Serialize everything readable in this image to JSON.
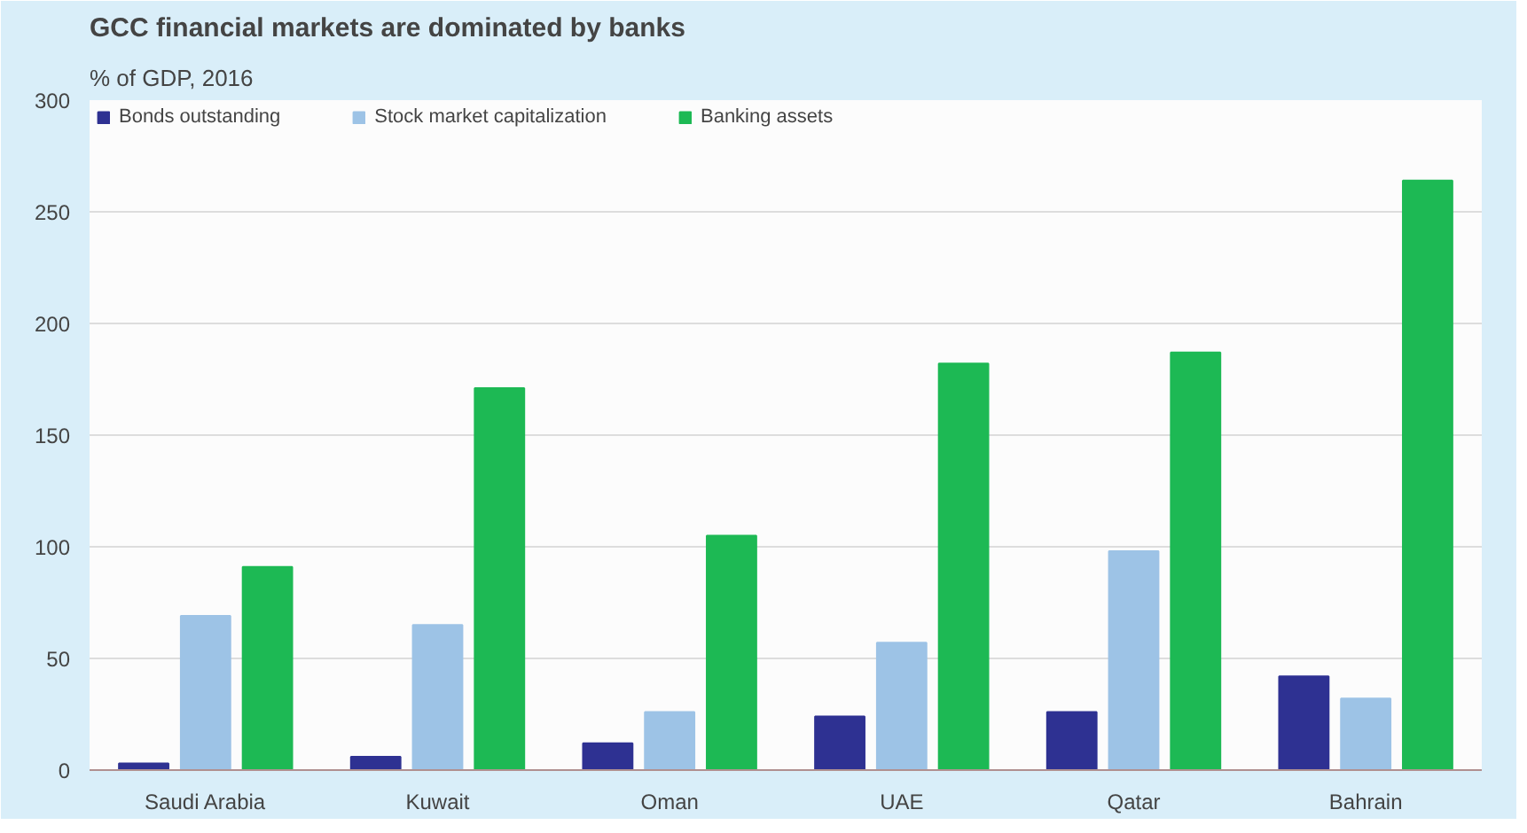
{
  "chart_data": {
    "type": "bar",
    "title": "GCC financial markets are dominated by banks",
    "subtitle": "% of GDP, 2016",
    "categories": [
      "Saudi Arabia",
      "Kuwait",
      "Oman",
      "UAE",
      "Qatar",
      "Bahrain"
    ],
    "series": [
      {
        "name": "Bonds outstanding",
        "color": "#2e3192",
        "values": [
          3,
          6,
          12,
          24,
          26,
          42
        ]
      },
      {
        "name": "Stock market capitalization",
        "color": "#9dc3e6",
        "values": [
          69,
          65,
          26,
          57,
          98,
          32
        ]
      },
      {
        "name": "Banking assets",
        "color": "#1db954",
        "values": [
          91,
          171,
          105,
          182,
          187,
          264
        ]
      }
    ],
    "ylim": [
      0,
      300
    ],
    "yticks": [
      0,
      50,
      100,
      150,
      200,
      250,
      300
    ],
    "grid": "y",
    "legend": "top"
  }
}
